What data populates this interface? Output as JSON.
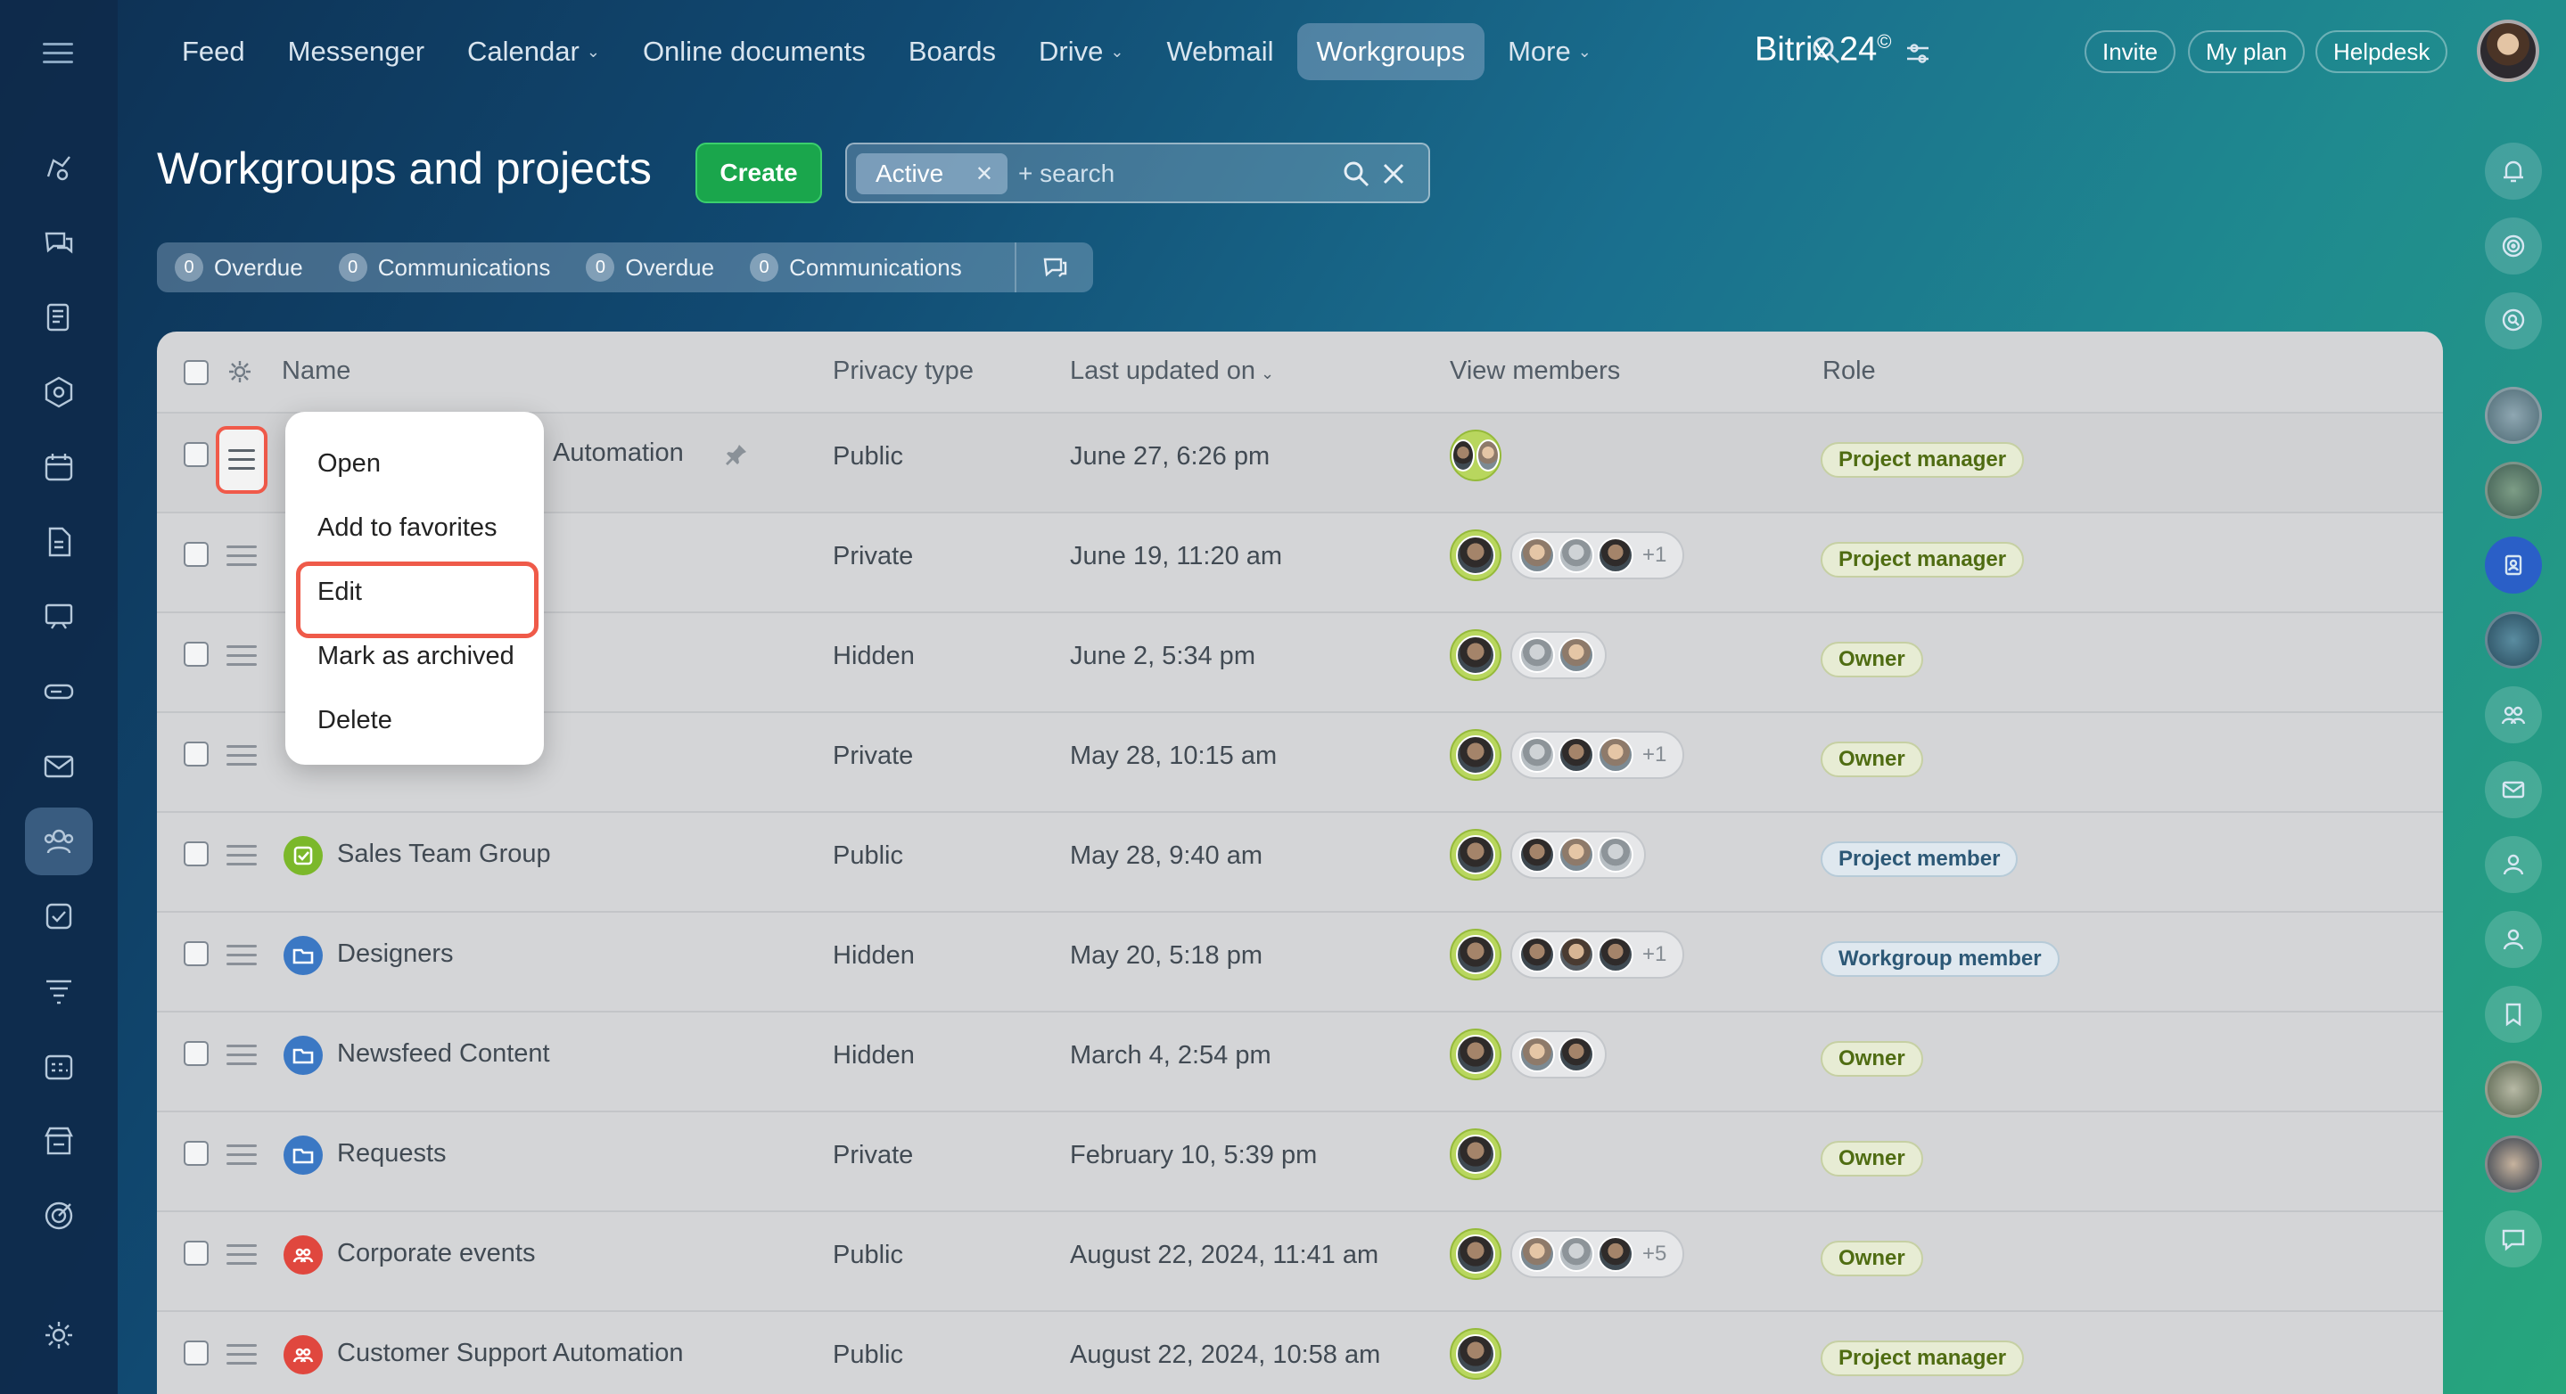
{
  "nav": {
    "items": [
      {
        "label": "Feed",
        "dropdown": false,
        "active": false
      },
      {
        "label": "Messenger",
        "dropdown": false,
        "active": false
      },
      {
        "label": "Calendar",
        "dropdown": true,
        "active": false
      },
      {
        "label": "Online documents",
        "dropdown": false,
        "active": false
      },
      {
        "label": "Boards",
        "dropdown": false,
        "active": false
      },
      {
        "label": "Drive",
        "dropdown": true,
        "active": false
      },
      {
        "label": "Webmail",
        "dropdown": false,
        "active": false
      },
      {
        "label": "Workgroups",
        "dropdown": false,
        "active": true
      },
      {
        "label": "More",
        "dropdown": true,
        "active": false
      }
    ],
    "brand": "Bitrix 24",
    "brand_mark": "©",
    "buttons": {
      "invite": "Invite",
      "my_plan": "My plan",
      "helpdesk": "Helpdesk"
    }
  },
  "page": {
    "title": "Workgroups and projects",
    "create_label": "Create",
    "filter": {
      "chip_label": "Active",
      "search_placeholder": "+ search"
    },
    "counters": [
      {
        "count": "0",
        "label": "Overdue"
      },
      {
        "count": "0",
        "label": "Communications"
      },
      {
        "count": "0",
        "label": "Overdue"
      },
      {
        "count": "0",
        "label": "Communications"
      }
    ]
  },
  "table": {
    "columns": {
      "name": "Name",
      "privacy": "Privacy type",
      "updated": "Last updated on",
      "members": "View members",
      "role": "Role"
    },
    "rows": [
      {
        "name": "Automation",
        "privacy": "Public",
        "updated": "June 27, 6:26 pm",
        "others_count": "",
        "role": "Project manager",
        "icon": "pin-icon"
      },
      {
        "name": "",
        "privacy": "Private",
        "updated": "June 19, 11:20 am",
        "others_count": "+1",
        "role": "Project manager"
      },
      {
        "name": "",
        "privacy": "Hidden",
        "updated": "June 2, 5:34 pm",
        "others_count": "",
        "role": "Owner"
      },
      {
        "name": "",
        "privacy": "Private",
        "updated": "May 28, 10:15 am",
        "others_count": "+1",
        "role": "Owner"
      },
      {
        "name": "Sales Team Group",
        "privacy": "Public",
        "updated": "May 28, 9:40 am",
        "others_count": "",
        "role": "Project member",
        "icon": "checklist-icon",
        "color": "#7bb82a"
      },
      {
        "name": "Designers",
        "privacy": "Hidden",
        "updated": "May 20, 5:18 pm",
        "others_count": "+1",
        "role": "Workgroup member",
        "icon": "folder-icon",
        "color": "#3b78c4"
      },
      {
        "name": "Newsfeed Content",
        "privacy": "Hidden",
        "updated": "March 4, 2:54 pm",
        "others_count": "",
        "role": "Owner",
        "icon": "folder-icon",
        "color": "#3b78c4"
      },
      {
        "name": "Requests",
        "privacy": "Private",
        "updated": "February 10, 5:39 pm",
        "others_count": "",
        "role": "Owner",
        "icon": "folder-icon",
        "color": "#3b78c4"
      },
      {
        "name": "Corporate events",
        "privacy": "Public",
        "updated": "August 22, 2024, 11:41 am",
        "others_count": "+5",
        "role": "Owner",
        "icon": "people-icon",
        "color": "#e0473e"
      },
      {
        "name": "Customer Support Automation",
        "privacy": "Public",
        "updated": "August 22, 2024, 10:58 am",
        "others_count": "",
        "role": "Project manager",
        "icon": "people-icon",
        "color": "#e0473e"
      }
    ]
  },
  "context_menu": {
    "items": [
      "Open",
      "Add to favorites",
      "Edit",
      "Mark as archived",
      "Delete"
    ],
    "highlighted": "Edit"
  },
  "colors": {
    "create_button": "#1aa64c",
    "highlight_outline": "#ef5a49",
    "role_badge_text": "#4f6c12"
  }
}
